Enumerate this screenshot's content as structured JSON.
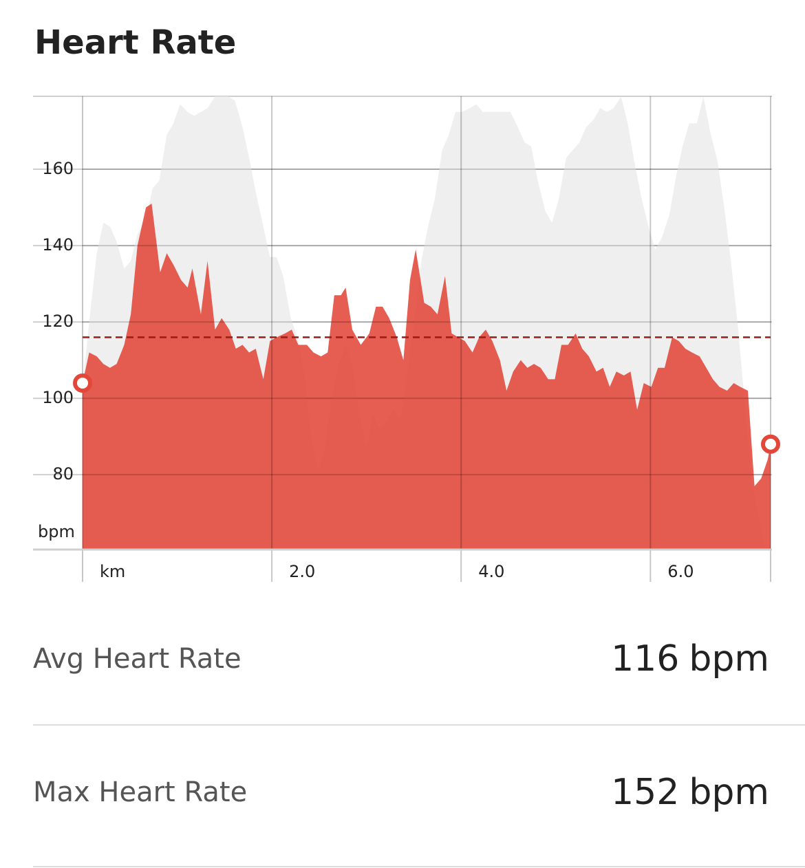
{
  "chart_data": {
    "type": "area",
    "title": "Heart Rate",
    "ylabel": "bpm",
    "xlim": [
      0,
      7.27
    ],
    "ylim": [
      60.4,
      179.1
    ],
    "yticks": [
      80,
      100,
      120,
      140,
      160
    ],
    "xticks": [
      {
        "value": 0,
        "label": "km"
      },
      {
        "value": 2,
        "label": "2.0"
      },
      {
        "value": 4,
        "label": "4.0"
      },
      {
        "value": 6,
        "label": "6.0"
      }
    ],
    "grid": true,
    "series": [
      {
        "color": "#efefef",
        "x": [
          0,
          0.07,
          0.15,
          0.22,
          0.29,
          0.36,
          0.44,
          0.51,
          0.58,
          0.67,
          0.74,
          0.81,
          0.89,
          0.96,
          1.03,
          1.11,
          1.18,
          1.25,
          1.32,
          1.4,
          1.47,
          1.54,
          1.61,
          1.69,
          1.76,
          1.83,
          1.91,
          1.98,
          2.05,
          2.12,
          2.2,
          2.27,
          2.34,
          2.41,
          2.49,
          2.56,
          2.63,
          2.71,
          2.78,
          2.85,
          2.92,
          3.0,
          3.07,
          3.14,
          3.21,
          3.29,
          3.36,
          3.43,
          3.51,
          3.58,
          3.65,
          3.72,
          3.8,
          3.87,
          3.94,
          4.01,
          4.09,
          4.16,
          4.23,
          4.31,
          4.38,
          4.52,
          4.6,
          4.67,
          4.74,
          4.81,
          4.89,
          4.96,
          5.03,
          5.11,
          5.18,
          5.25,
          5.32,
          5.4,
          5.47,
          5.54,
          5.61,
          5.69,
          5.76,
          5.83,
          5.91,
          5.98,
          6.05,
          6.12,
          6.2,
          6.27,
          6.34,
          6.41,
          6.49,
          6.56,
          6.63,
          6.71,
          6.78,
          6.85,
          6.92,
          7.0,
          7.07,
          7.14,
          7.21,
          7.27
        ],
        "values": [
          103,
          120,
          138,
          146,
          145,
          141,
          134,
          136,
          143,
          147,
          155,
          157,
          169,
          172,
          177,
          175,
          174,
          175,
          176,
          179,
          179,
          179,
          178,
          171,
          163,
          154,
          145,
          137,
          137,
          132,
          121,
          116,
          107,
          91,
          81,
          87,
          100,
          109,
          114,
          109,
          96,
          87,
          96,
          92,
          94,
          97,
          94,
          107,
          121,
          136,
          145,
          152,
          165,
          169,
          175,
          175,
          176,
          177,
          175,
          175,
          175,
          175,
          171,
          167,
          166,
          157,
          149,
          146,
          152,
          163,
          165,
          167,
          171,
          173,
          176,
          175,
          176,
          179,
          172,
          162,
          152,
          145,
          139,
          142,
          148,
          158,
          166,
          172,
          172,
          179,
          170,
          162,
          150,
          136,
          120,
          98,
          78,
          70,
          61,
          61
        ]
      },
      {
        "color": "#e2473a",
        "x": [
          0,
          0.07,
          0.15,
          0.22,
          0.29,
          0.36,
          0.44,
          0.51,
          0.58,
          0.67,
          0.73,
          0.82,
          0.89,
          0.96,
          1.04,
          1.11,
          1.16,
          1.25,
          1.32,
          1.4,
          1.47,
          1.55,
          1.62,
          1.69,
          1.76,
          1.83,
          1.91,
          1.98,
          2.05,
          2.14,
          2.21,
          2.28,
          2.37,
          2.44,
          2.52,
          2.59,
          2.66,
          2.73,
          2.78,
          2.85,
          2.94,
          3.03,
          3.1,
          3.17,
          3.24,
          3.32,
          3.39,
          3.46,
          3.52,
          3.61,
          3.68,
          3.75,
          3.83,
          3.9,
          3.97,
          4.04,
          4.12,
          4.19,
          4.26,
          4.33,
          4.41,
          4.48,
          4.55,
          4.63,
          4.7,
          4.77,
          4.84,
          4.92,
          4.99,
          5.06,
          5.13,
          5.21,
          5.28,
          5.35,
          5.43,
          5.5,
          5.57,
          5.64,
          5.72,
          5.79,
          5.86,
          5.93,
          6.01,
          6.08,
          6.15,
          6.23,
          6.3,
          6.37,
          6.44,
          6.52,
          6.59,
          6.66,
          6.73,
          6.81,
          6.88,
          6.95,
          7.03,
          7.1,
          7.17,
          7.24,
          7.27
        ],
        "values": [
          104,
          112,
          111,
          109,
          108,
          109,
          114,
          122,
          140,
          150,
          151,
          133,
          138,
          135,
          131,
          129,
          134,
          122,
          136,
          118,
          121,
          118,
          113,
          114,
          112,
          113,
          105,
          115,
          116,
          117,
          118,
          114,
          114,
          112,
          111,
          112,
          127,
          127,
          129,
          118,
          114,
          117,
          124,
          124,
          121,
          116,
          110,
          131,
          139,
          125,
          124,
          122,
          132,
          117,
          116,
          115,
          112,
          116,
          118,
          115,
          110,
          102,
          107,
          110,
          108,
          109,
          108,
          105,
          105,
          114,
          114,
          117,
          113,
          111,
          107,
          108,
          103,
          107,
          106,
          107,
          97,
          104,
          103,
          108,
          108,
          116,
          115,
          113,
          112,
          111,
          108,
          105,
          103,
          102,
          104,
          103,
          102,
          77,
          79,
          84,
          88
        ]
      }
    ]
  },
  "stats": [
    {
      "label": "Avg Heart Rate",
      "value": 116,
      "unit": "bpm"
    },
    {
      "label": "Max Heart Rate",
      "value": 152,
      "unit": "bpm"
    }
  ]
}
